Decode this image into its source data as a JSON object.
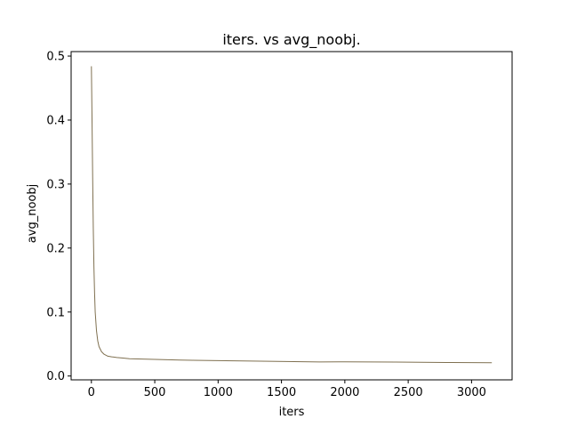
{
  "chart_data": {
    "type": "line",
    "title": "iters. vs avg_noobj.",
    "xlabel": "iters",
    "ylabel": "avg_noobj",
    "xlim": [
      -160,
      3320
    ],
    "ylim": [
      -0.006,
      0.507
    ],
    "xticks": [
      0,
      500,
      1000,
      1500,
      2000,
      2500,
      3000
    ],
    "yticks": [
      0.0,
      0.1,
      0.2,
      0.3,
      0.4,
      0.5
    ],
    "ytick_labels": [
      "0.0",
      "0.1",
      "0.2",
      "0.3",
      "0.4",
      "0.5"
    ],
    "grid": false,
    "series": [
      {
        "color": "#7f7050",
        "x": [
          0,
          5,
          10,
          15,
          20,
          25,
          30,
          40,
          50,
          60,
          80,
          100,
          130,
          160,
          200,
          250,
          300,
          400,
          500,
          600,
          700,
          800,
          1000,
          1200,
          1400,
          1600,
          1800,
          2000,
          2200,
          2400,
          2600,
          2800,
          3000,
          3160
        ],
        "y": [
          0.484,
          0.4,
          0.31,
          0.23,
          0.17,
          0.13,
          0.1,
          0.071,
          0.055,
          0.046,
          0.038,
          0.034,
          0.031,
          0.03,
          0.029,
          0.028,
          0.027,
          0.0265,
          0.026,
          0.0255,
          0.025,
          0.0245,
          0.024,
          0.0235,
          0.023,
          0.0225,
          0.022,
          0.0222,
          0.022,
          0.0218,
          0.0215,
          0.0212,
          0.021,
          0.0208
        ]
      }
    ]
  }
}
